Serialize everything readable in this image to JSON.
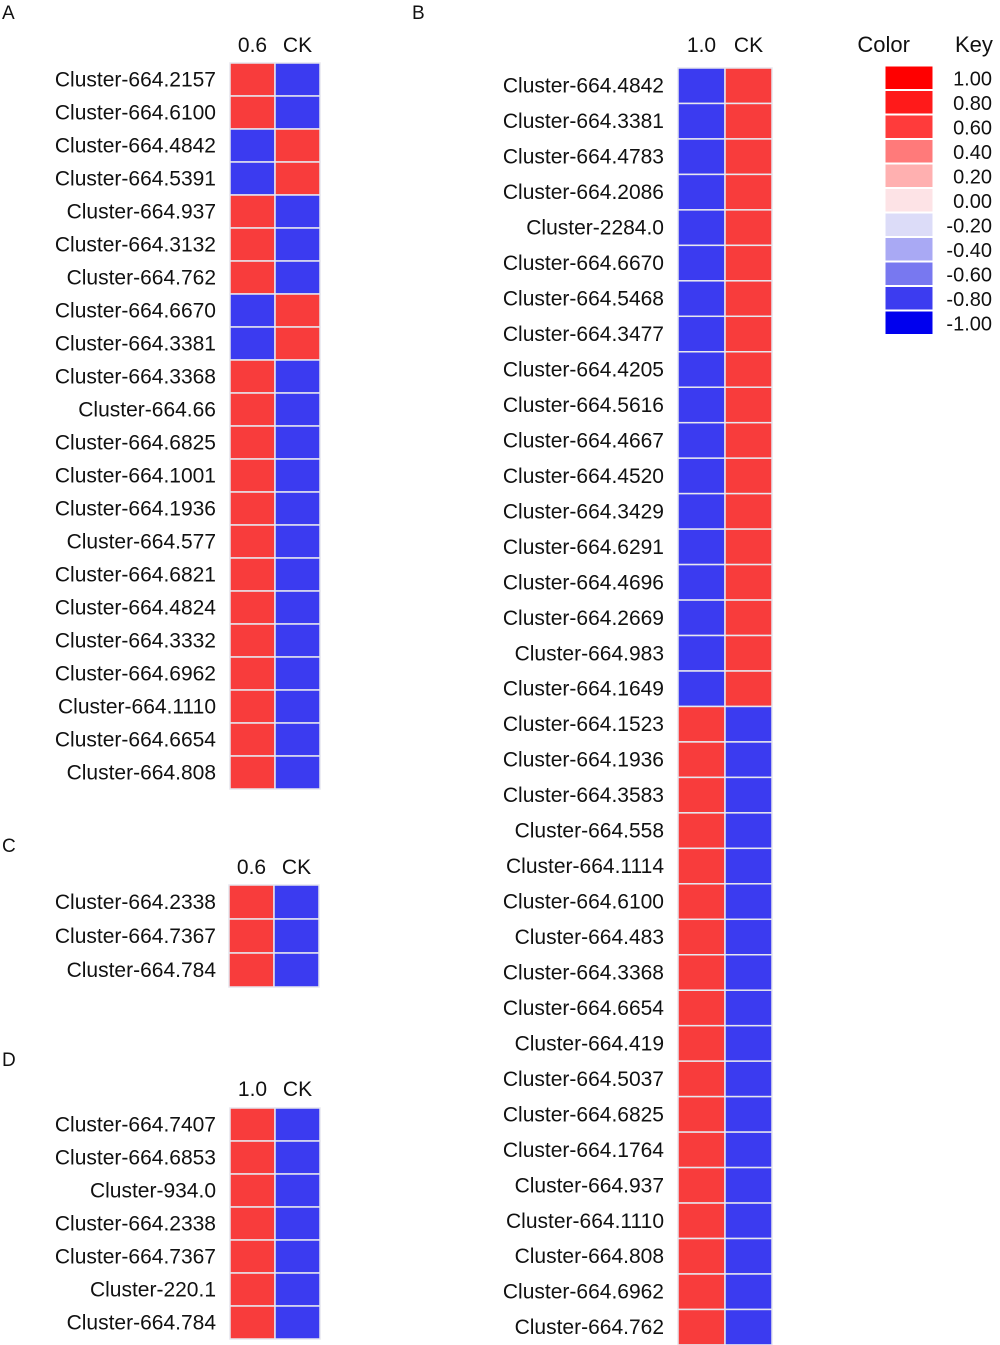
{
  "colors": {
    "up": "#f83c3c",
    "down": "#3b3bf0",
    "border": "#e6e6ee",
    "text": "#111111"
  },
  "chart_data": [
    {
      "type": "heatmap",
      "panel": "A",
      "columns": [
        "0.6",
        "CK"
      ],
      "rows": [
        {
          "label": "Cluster-664.2157",
          "values": [
            0.6,
            -0.8
          ]
        },
        {
          "label": "Cluster-664.6100",
          "values": [
            0.6,
            -0.8
          ]
        },
        {
          "label": "Cluster-664.4842",
          "values": [
            -0.8,
            0.6
          ]
        },
        {
          "label": "Cluster-664.5391",
          "values": [
            -0.8,
            0.6
          ]
        },
        {
          "label": "Cluster-664.937",
          "values": [
            0.6,
            -0.8
          ]
        },
        {
          "label": "Cluster-664.3132",
          "values": [
            0.6,
            -0.8
          ]
        },
        {
          "label": "Cluster-664.762",
          "values": [
            0.6,
            -0.8
          ]
        },
        {
          "label": "Cluster-664.6670",
          "values": [
            -0.8,
            0.6
          ]
        },
        {
          "label": "Cluster-664.3381",
          "values": [
            -0.8,
            0.6
          ]
        },
        {
          "label": "Cluster-664.3368",
          "values": [
            0.6,
            -0.8
          ]
        },
        {
          "label": "Cluster-664.66",
          "values": [
            0.6,
            -0.8
          ]
        },
        {
          "label": "Cluster-664.6825",
          "values": [
            0.6,
            -0.8
          ]
        },
        {
          "label": "Cluster-664.1001",
          "values": [
            0.6,
            -0.8
          ]
        },
        {
          "label": "Cluster-664.1936",
          "values": [
            0.6,
            -0.8
          ]
        },
        {
          "label": "Cluster-664.577",
          "values": [
            0.6,
            -0.8
          ]
        },
        {
          "label": "Cluster-664.6821",
          "values": [
            0.6,
            -0.8
          ]
        },
        {
          "label": "Cluster-664.4824",
          "values": [
            0.6,
            -0.8
          ]
        },
        {
          "label": "Cluster-664.3332",
          "values": [
            0.6,
            -0.8
          ]
        },
        {
          "label": "Cluster-664.6962",
          "values": [
            0.6,
            -0.8
          ]
        },
        {
          "label": "Cluster-664.1110",
          "values": [
            0.6,
            -0.8
          ]
        },
        {
          "label": "Cluster-664.6654",
          "values": [
            0.6,
            -0.8
          ]
        },
        {
          "label": "Cluster-664.808",
          "values": [
            0.6,
            -0.8
          ]
        }
      ]
    },
    {
      "type": "heatmap",
      "panel": "B",
      "columns": [
        "1.0",
        "CK"
      ],
      "rows": [
        {
          "label": "Cluster-664.4842",
          "values": [
            -0.8,
            0.6
          ]
        },
        {
          "label": "Cluster-664.3381",
          "values": [
            -0.8,
            0.6
          ]
        },
        {
          "label": "Cluster-664.4783",
          "values": [
            -0.8,
            0.6
          ]
        },
        {
          "label": "Cluster-664.2086",
          "values": [
            -0.8,
            0.6
          ]
        },
        {
          "label": "Cluster-2284.0",
          "values": [
            -0.8,
            0.6
          ]
        },
        {
          "label": "Cluster-664.6670",
          "values": [
            -0.8,
            0.6
          ]
        },
        {
          "label": "Cluster-664.5468",
          "values": [
            -0.8,
            0.6
          ]
        },
        {
          "label": "Cluster-664.3477",
          "values": [
            -0.8,
            0.6
          ]
        },
        {
          "label": "Cluster-664.4205",
          "values": [
            -0.8,
            0.6
          ]
        },
        {
          "label": "Cluster-664.5616",
          "values": [
            -0.8,
            0.6
          ]
        },
        {
          "label": "Cluster-664.4667",
          "values": [
            -0.8,
            0.6
          ]
        },
        {
          "label": "Cluster-664.4520",
          "values": [
            -0.8,
            0.6
          ]
        },
        {
          "label": "Cluster-664.3429",
          "values": [
            -0.8,
            0.6
          ]
        },
        {
          "label": "Cluster-664.6291",
          "values": [
            -0.8,
            0.6
          ]
        },
        {
          "label": "Cluster-664.4696",
          "values": [
            -0.8,
            0.6
          ]
        },
        {
          "label": "Cluster-664.2669",
          "values": [
            -0.8,
            0.6
          ]
        },
        {
          "label": "Cluster-664.983",
          "values": [
            -0.8,
            0.6
          ]
        },
        {
          "label": "Cluster-664.1649",
          "values": [
            -0.8,
            0.6
          ]
        },
        {
          "label": "Cluster-664.1523",
          "values": [
            0.6,
            -0.8
          ]
        },
        {
          "label": "Cluster-664.1936",
          "values": [
            0.6,
            -0.8
          ]
        },
        {
          "label": "Cluster-664.3583",
          "values": [
            0.6,
            -0.8
          ]
        },
        {
          "label": "Cluster-664.558",
          "values": [
            0.6,
            -0.8
          ]
        },
        {
          "label": "Cluster-664.1114",
          "values": [
            0.6,
            -0.8
          ]
        },
        {
          "label": "Cluster-664.6100",
          "values": [
            0.6,
            -0.8
          ]
        },
        {
          "label": "Cluster-664.483",
          "values": [
            0.6,
            -0.8
          ]
        },
        {
          "label": "Cluster-664.3368",
          "values": [
            0.6,
            -0.8
          ]
        },
        {
          "label": "Cluster-664.6654",
          "values": [
            0.6,
            -0.8
          ]
        },
        {
          "label": "Cluster-664.419",
          "values": [
            0.6,
            -0.8
          ]
        },
        {
          "label": "Cluster-664.5037",
          "values": [
            0.6,
            -0.8
          ]
        },
        {
          "label": "Cluster-664.6825",
          "values": [
            0.6,
            -0.8
          ]
        },
        {
          "label": "Cluster-664.1764",
          "values": [
            0.6,
            -0.8
          ]
        },
        {
          "label": "Cluster-664.937",
          "values": [
            0.6,
            -0.8
          ]
        },
        {
          "label": "Cluster-664.1110",
          "values": [
            0.6,
            -0.8
          ]
        },
        {
          "label": "Cluster-664.808",
          "values": [
            0.6,
            -0.8
          ]
        },
        {
          "label": "Cluster-664.6962",
          "values": [
            0.6,
            -0.8
          ]
        },
        {
          "label": "Cluster-664.762",
          "values": [
            0.6,
            -0.8
          ]
        }
      ]
    },
    {
      "type": "heatmap",
      "panel": "C",
      "columns": [
        "0.6",
        "CK"
      ],
      "rows": [
        {
          "label": "Cluster-664.2338",
          "values": [
            0.6,
            -0.8
          ]
        },
        {
          "label": "Cluster-664.7367",
          "values": [
            0.6,
            -0.8
          ]
        },
        {
          "label": "Cluster-664.784",
          "values": [
            0.6,
            -0.8
          ]
        }
      ]
    },
    {
      "type": "heatmap",
      "panel": "D",
      "columns": [
        "1.0",
        "CK"
      ],
      "rows": [
        {
          "label": "Cluster-664.7407",
          "values": [
            0.6,
            -0.8
          ]
        },
        {
          "label": "Cluster-664.6853",
          "values": [
            0.6,
            -0.8
          ]
        },
        {
          "label": "Cluster-934.0",
          "values": [
            0.6,
            -0.8
          ]
        },
        {
          "label": "Cluster-664.2338",
          "values": [
            0.6,
            -0.8
          ]
        },
        {
          "label": "Cluster-664.7367",
          "values": [
            0.6,
            -0.8
          ]
        },
        {
          "label": "Cluster-220.1",
          "values": [
            0.6,
            -0.8
          ]
        },
        {
          "label": "Cluster-664.784",
          "values": [
            0.6,
            -0.8
          ]
        }
      ]
    }
  ],
  "color_key": {
    "title_left": "Color",
    "title_right": "Key",
    "levels": [
      {
        "label": "1.00",
        "value": 1.0,
        "color": "#ff0000"
      },
      {
        "label": "0.80",
        "value": 0.8,
        "color": "#ff1a1a"
      },
      {
        "label": "0.60",
        "value": 0.6,
        "color": "#ff3b3b"
      },
      {
        "label": "0.40",
        "value": 0.4,
        "color": "#ff7a7a"
      },
      {
        "label": "0.20",
        "value": 0.2,
        "color": "#ffb0b0"
      },
      {
        "label": "0.00",
        "value": 0.0,
        "color": "#fde3e6"
      },
      {
        "label": "-0.20",
        "value": -0.2,
        "color": "#dcdcf8"
      },
      {
        "label": "-0.40",
        "value": -0.4,
        "color": "#a9a9f4"
      },
      {
        "label": "-0.60",
        "value": -0.6,
        "color": "#7878f0"
      },
      {
        "label": "-0.80",
        "value": -0.8,
        "color": "#3c3cf0"
      },
      {
        "label": "-1.00",
        "value": -1.0,
        "color": "#0000ee"
      }
    ]
  }
}
